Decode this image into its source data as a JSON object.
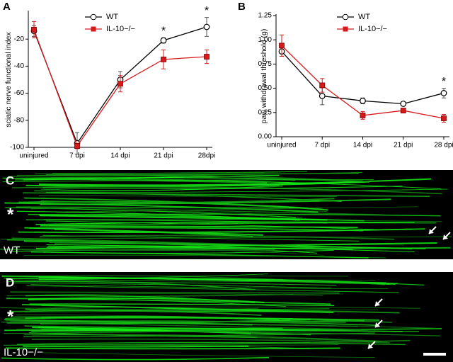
{
  "chart_data": [
    {
      "type": "line",
      "panel_label": "A",
      "ylabel": "sciatic nerve functional index",
      "categories": [
        "uninjured",
        "7 dpi",
        "14 dpi",
        "21 dpi",
        "28dpi"
      ],
      "series": [
        {
          "name": "WT",
          "color": "#000000",
          "marker": "circle",
          "values": [
            -14,
            -97,
            -50,
            -21,
            -11
          ],
          "errors": [
            4,
            8,
            6,
            2,
            7
          ]
        },
        {
          "name": "IL-10−/−",
          "color": "#d7191c",
          "marker": "square",
          "values": [
            -13,
            -99,
            -53,
            -35,
            -33
          ],
          "errors": [
            6,
            2,
            6,
            7,
            5
          ]
        }
      ],
      "ylim": [
        -100,
        0
      ],
      "yticks": [
        -100,
        -80,
        -60,
        -40,
        -20
      ],
      "annotations": [
        {
          "text": "*",
          "category": "21 dpi"
        },
        {
          "text": "*",
          "category": "28dpi"
        }
      ]
    },
    {
      "type": "line",
      "panel_label": "B",
      "ylabel": "paw withdrawal threshold (g)",
      "categories": [
        "uninjured",
        "7 dpi",
        "14 dpi",
        "21 dpi",
        "28 dpi"
      ],
      "series": [
        {
          "name": "WT",
          "color": "#000000",
          "marker": "circle",
          "values": [
            0.88,
            0.42,
            0.37,
            0.34,
            0.45
          ],
          "errors": [
            0.05,
            0.09,
            0.03,
            0.02,
            0.05
          ]
        },
        {
          "name": "IL-10−/−",
          "color": "#d7191c",
          "marker": "square",
          "values": [
            0.94,
            0.53,
            0.22,
            0.27,
            0.19
          ],
          "errors": [
            0.11,
            0.07,
            0.04,
            0.01,
            0.04
          ]
        }
      ],
      "ylim": [
        0,
        1.25
      ],
      "yticks": [
        {
          "value": 0,
          "label": "0.00"
        },
        {
          "value": 0.25,
          "label": "0.25"
        },
        {
          "value": 0.5,
          "label": "0.50"
        },
        {
          "value": 0.75,
          "label": "0.75"
        },
        {
          "value": 1,
          "label": "1.00"
        },
        {
          "value": 1.25,
          "label": "1.25"
        }
      ],
      "annotations": [
        {
          "text": "*",
          "category": "28 dpi"
        }
      ]
    }
  ],
  "images": [
    {
      "label": "C",
      "marker": "*",
      "caption": "WT"
    },
    {
      "label": "D",
      "marker": "*",
      "caption": "IL-10−/−"
    }
  ]
}
